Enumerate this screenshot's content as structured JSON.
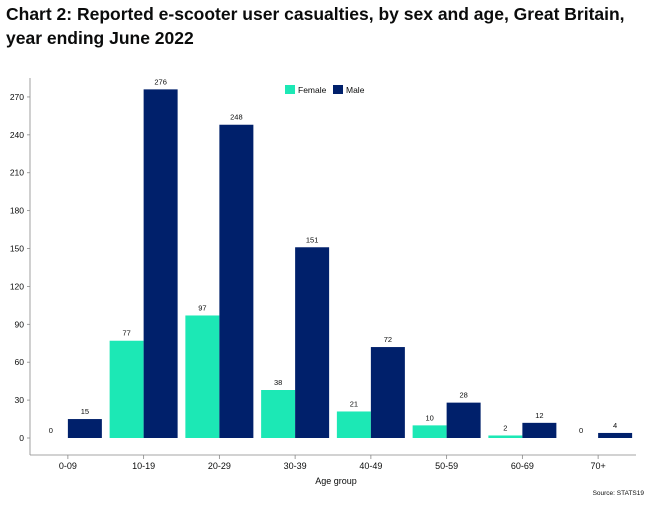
{
  "page": {
    "title": "Chart 2: Reported e-scooter user casualties, by sex and age, Great Britain, year ending June 2022",
    "source": "Source: STATS19"
  },
  "colors": {
    "female": "#1ce8b5",
    "male": "#00206b",
    "grid": "#d9d9d9",
    "axis": "#888888",
    "text": "#0b0c0c"
  },
  "chart_data": {
    "type": "bar",
    "title": "Chart 2: Reported e-scooter user casualties, by sex and age, Great Britain, year ending June 2022",
    "xlabel": "Age group",
    "ylabel": "",
    "ylim": [
      0,
      285
    ],
    "yticks": [
      0,
      30,
      60,
      90,
      120,
      150,
      180,
      210,
      240,
      270
    ],
    "grid": false,
    "legend_position": "top-center",
    "categories": [
      "0-09",
      "10-19",
      "20-29",
      "30-39",
      "40-49",
      "50-59",
      "60-69",
      "70+"
    ],
    "series": [
      {
        "name": "Female",
        "color_key": "female",
        "values": [
          0,
          77,
          97,
          38,
          21,
          10,
          2,
          0
        ]
      },
      {
        "name": "Male",
        "color_key": "male",
        "values": [
          15,
          276,
          248,
          151,
          72,
          28,
          12,
          4
        ]
      }
    ]
  }
}
